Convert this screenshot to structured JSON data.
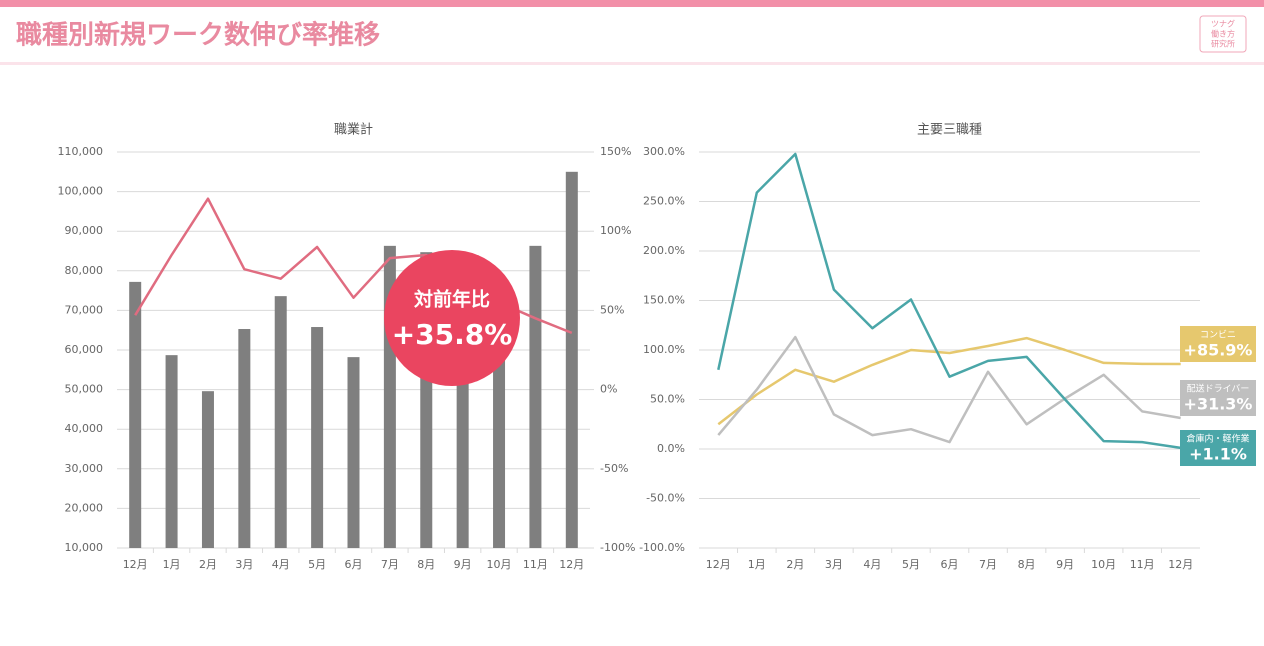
{
  "header": {
    "title": "職種別新規ワーク数伸び率推移",
    "logo": [
      "ツナグ",
      "働き方",
      "研究所"
    ]
  },
  "chart_data": [
    {
      "type": "bar",
      "title": "職業計",
      "categories": [
        "12月",
        "1月",
        "2月",
        "3月",
        "4月",
        "5月",
        "6月",
        "7月",
        "8月",
        "9月",
        "10月",
        "11月",
        "12月"
      ],
      "series": [
        {
          "color": "#7f7f7f",
          "values": [
            77200,
            58700,
            49600,
            65300,
            73600,
            65800,
            58200,
            86300,
            84700,
            70000,
            62000,
            86300,
            105000
          ]
        },
        {
          "name": "対前年比",
          "type": "line",
          "axis": "y2",
          "color": "#e06c80",
          "values": [
            47,
            85,
            120.5,
            76,
            70,
            90,
            58,
            83,
            85,
            70,
            55,
            45,
            35.8
          ],
          "value_labels": [
            null,
            null,
            null,
            null,
            null,
            null,
            null,
            null,
            null,
            null,
            null,
            null,
            "+35.8%"
          ]
        }
      ],
      "ylim": [
        10000,
        110000
      ],
      "yticks": [
        {
          "value": 10000,
          "label": "10,000"
        },
        {
          "value": 20000,
          "label": "20,000"
        },
        {
          "value": 30000,
          "label": "30,000"
        },
        {
          "value": 40000,
          "label": "40,000"
        },
        {
          "value": 50000,
          "label": "50,000"
        },
        {
          "value": 60000,
          "label": "60,000"
        },
        {
          "value": 70000,
          "label": "70,000"
        },
        {
          "value": 80000,
          "label": "80,000"
        },
        {
          "value": 90000,
          "label": "90,000"
        },
        {
          "value": 100000,
          "label": "100,000"
        },
        {
          "value": 110000,
          "label": "110,000"
        }
      ],
      "y2lim": [
        -100,
        150
      ],
      "y2ticks": [
        {
          "value": -100,
          "label": "-100%"
        },
        {
          "value": -50,
          "label": "-50%"
        },
        {
          "value": 0,
          "label": "0%"
        },
        {
          "value": 50,
          "label": "50%"
        },
        {
          "value": 100,
          "label": "100%"
        },
        {
          "value": 150,
          "label": "150%"
        }
      ],
      "grid": true
    },
    {
      "type": "line",
      "title": "主要三職種",
      "categories": [
        "12月",
        "1月",
        "2月",
        "3月",
        "4月",
        "5月",
        "6月",
        "7月",
        "8月",
        "9月",
        "10月",
        "11月",
        "12月"
      ],
      "series": [
        {
          "name": "コンビニ",
          "color": "#e6c86e",
          "values": [
            25,
            55,
            80,
            68,
            85,
            100,
            97,
            104,
            112,
            100,
            87,
            86,
            85.9
          ],
          "value_labels": [
            null,
            null,
            null,
            null,
            null,
            null,
            null,
            null,
            null,
            null,
            null,
            null,
            "+85.9%"
          ]
        },
        {
          "name": "配送ドライバー",
          "color": "#bfbfbf",
          "values": [
            14,
            60,
            113,
            35,
            14,
            20,
            7,
            78,
            25,
            51,
            75,
            38,
            31.3
          ],
          "value_labels": [
            null,
            null,
            null,
            null,
            null,
            null,
            null,
            null,
            null,
            null,
            null,
            null,
            "+31.3%"
          ]
        },
        {
          "name": "倉庫内・軽作業",
          "color": "#4aa6a8",
          "values": [
            80,
            259,
            298,
            161,
            122,
            151,
            73,
            89,
            93,
            50,
            8,
            7,
            1.1
          ],
          "value_labels": [
            null,
            null,
            null,
            null,
            null,
            null,
            null,
            null,
            null,
            null,
            null,
            null,
            "+1.1%"
          ]
        }
      ],
      "ylim": [
        -100,
        300
      ],
      "yticks": [
        {
          "value": -100,
          "label": "-100.0%"
        },
        {
          "value": -50,
          "label": "-50.0%"
        },
        {
          "value": 0,
          "label": "0.0%"
        },
        {
          "value": 50,
          "label": "50.0%"
        },
        {
          "value": 100,
          "label": "100.0%"
        },
        {
          "value": 150,
          "label": "150.0%"
        },
        {
          "value": 200,
          "label": "200.0%"
        },
        {
          "value": 250,
          "label": "250.0%"
        },
        {
          "value": 300,
          "label": "300.0%"
        }
      ],
      "grid": true
    }
  ]
}
